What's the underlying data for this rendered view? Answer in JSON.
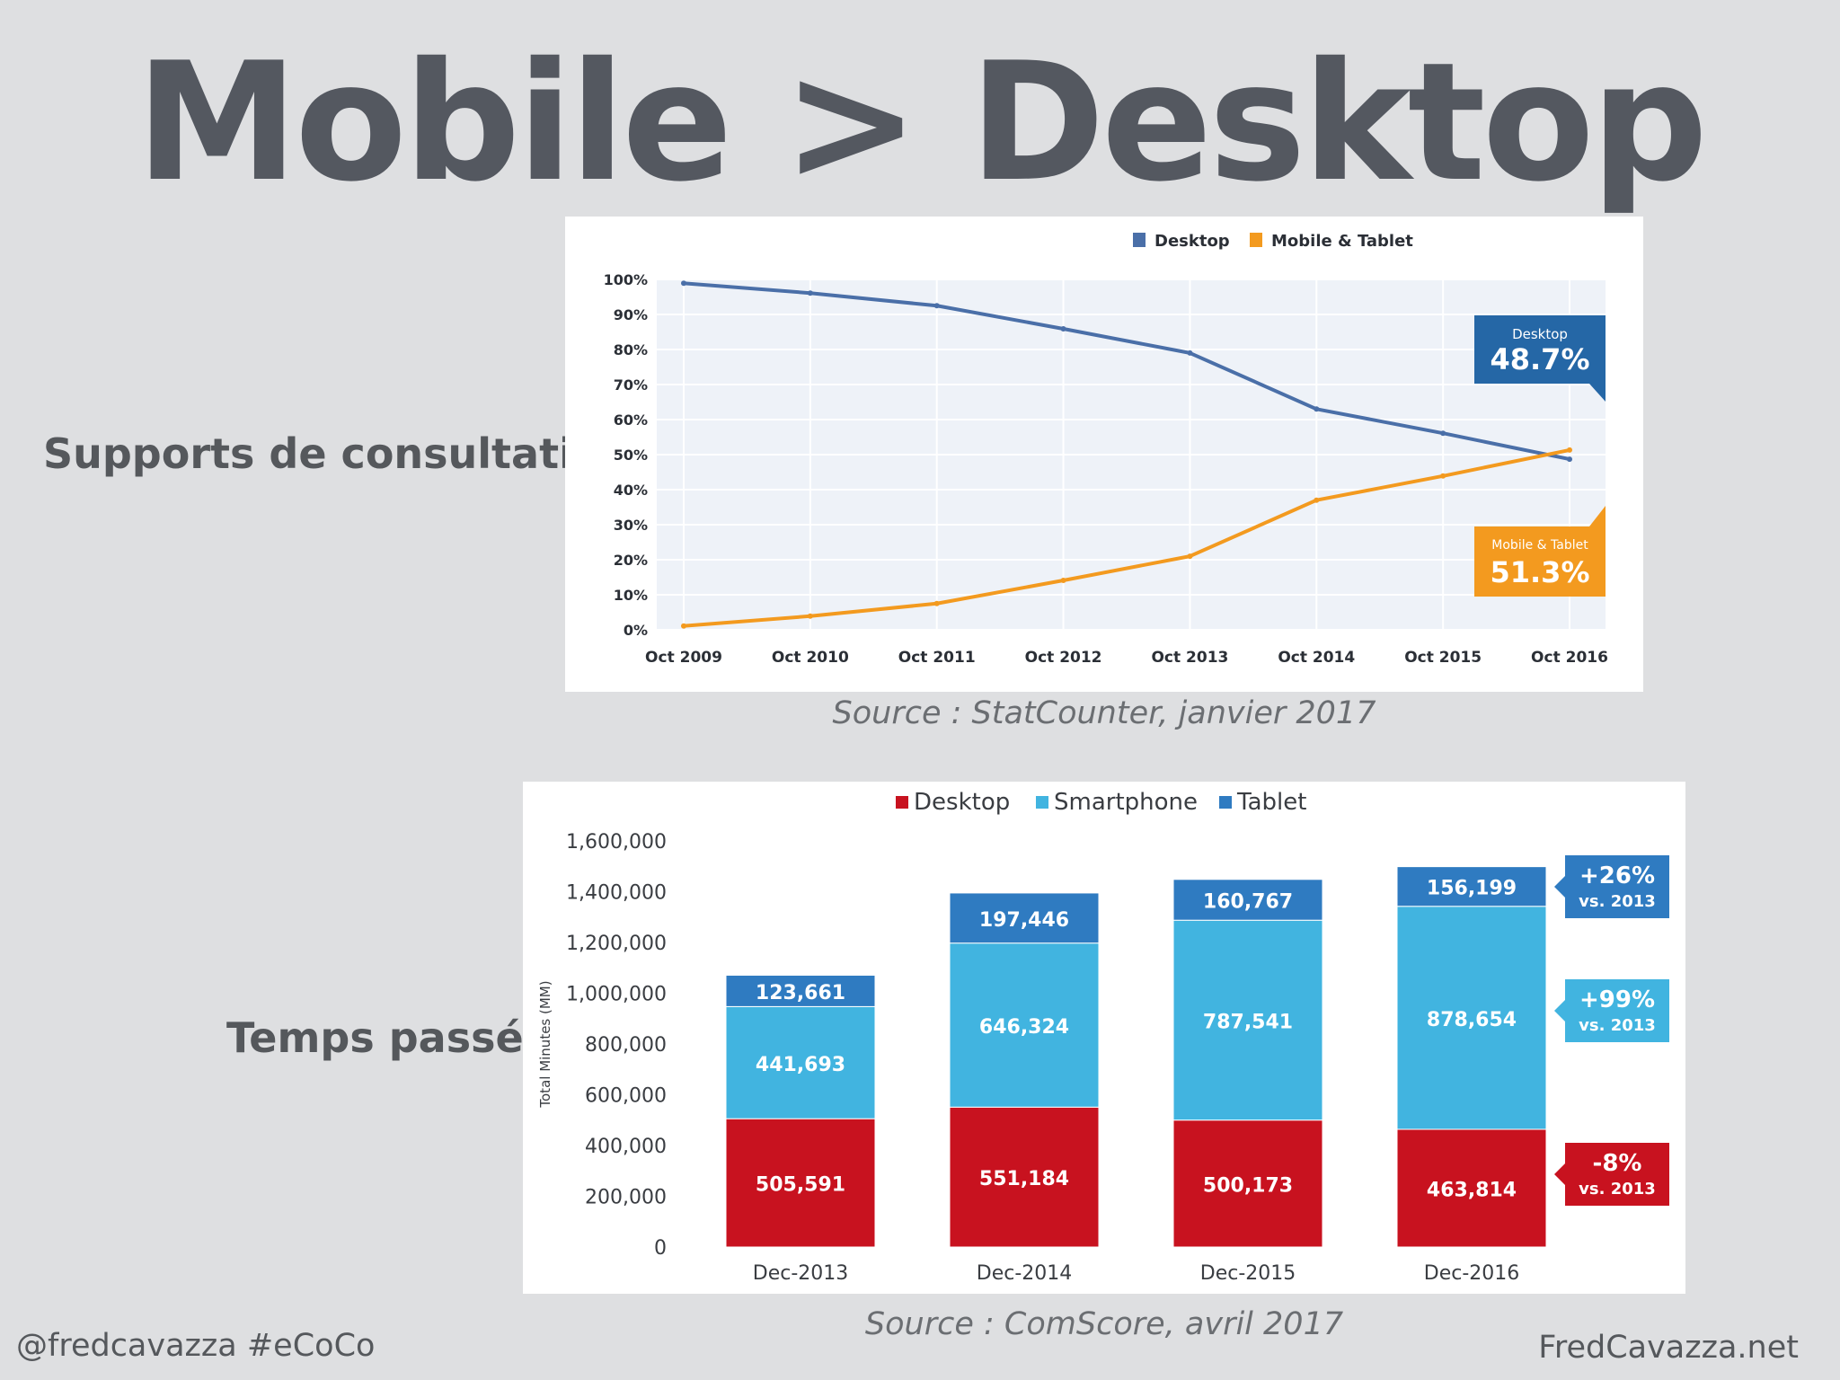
{
  "slide": {
    "title": "Mobile > Desktop",
    "section1_label": "Supports de consultation :",
    "section2_label": "Temps passé :",
    "source1": "Source : StatCounter, janvier 2017",
    "source2": "Source : ComScore, avril 2017",
    "footer_left": "@fredcavazza #eCoCo",
    "footer_right": "FredCavazza.net"
  },
  "chart_data": [
    {
      "type": "line",
      "title": "",
      "x": [
        "Oct 2009",
        "Oct 2010",
        "Oct 2011",
        "Oct 2012",
        "Oct 2013",
        "Oct 2014",
        "Oct 2015",
        "Oct 2016"
      ],
      "ylim": [
        0,
        100
      ],
      "y_ticks": [
        "0%",
        "10%",
        "20%",
        "30%",
        "40%",
        "50%",
        "60%",
        "70%",
        "80%",
        "90%",
        "100%"
      ],
      "grid": true,
      "legend_position": "top",
      "series": [
        {
          "name": "Desktop",
          "color": "#4a6fa8",
          "values": [
            98.9,
            96.1,
            92.5,
            85.9,
            79.0,
            63.0,
            56.1,
            48.7
          ]
        },
        {
          "name": "Mobile & Tablet",
          "color": "#f39a1f",
          "values": [
            1.1,
            3.9,
            7.5,
            14.1,
            21.0,
            37.0,
            43.9,
            51.3
          ]
        }
      ],
      "callouts": [
        {
          "label": "Desktop",
          "value": "48.7%",
          "color": "#2567a6"
        },
        {
          "label": "Mobile & Tablet",
          "value": "51.3%",
          "color": "#f39a1f"
        }
      ]
    },
    {
      "type": "bar",
      "stacked": true,
      "title": "",
      "ylabel": "Total Minutes (MM)",
      "categories": [
        "Dec-2013",
        "Dec-2014",
        "Dec-2015",
        "Dec-2016"
      ],
      "ylim": [
        0,
        1600000
      ],
      "y_ticks": [
        "0",
        "200,000",
        "400,000",
        "600,000",
        "800,000",
        "1,000,000",
        "1,200,000",
        "1,400,000",
        "1,600,000"
      ],
      "legend_position": "top",
      "series": [
        {
          "name": "Desktop",
          "color": "#c8121f",
          "values": [
            505591,
            551184,
            500173,
            463814
          ],
          "labels": [
            "505,591",
            "551,184",
            "500,173",
            "463,814"
          ]
        },
        {
          "name": "Smartphone",
          "color": "#41b4e0",
          "values": [
            441693,
            646324,
            787541,
            878654
          ],
          "labels": [
            "441,693",
            "646,324",
            "787,541",
            "878,654"
          ]
        },
        {
          "name": "Tablet",
          "color": "#2f7bc1",
          "values": [
            123661,
            197446,
            160767,
            156199
          ],
          "labels": [
            "123,661",
            "197,446",
            "160,767",
            "156,199"
          ]
        }
      ],
      "callouts": [
        {
          "value": "+26%",
          "sub": "vs. 2013",
          "color": "#2f7bc1"
        },
        {
          "value": "+99%",
          "sub": "vs. 2013",
          "color": "#41b4e0"
        },
        {
          "value": "-8%",
          "sub": "vs. 2013",
          "color": "#c8121f"
        }
      ]
    }
  ]
}
